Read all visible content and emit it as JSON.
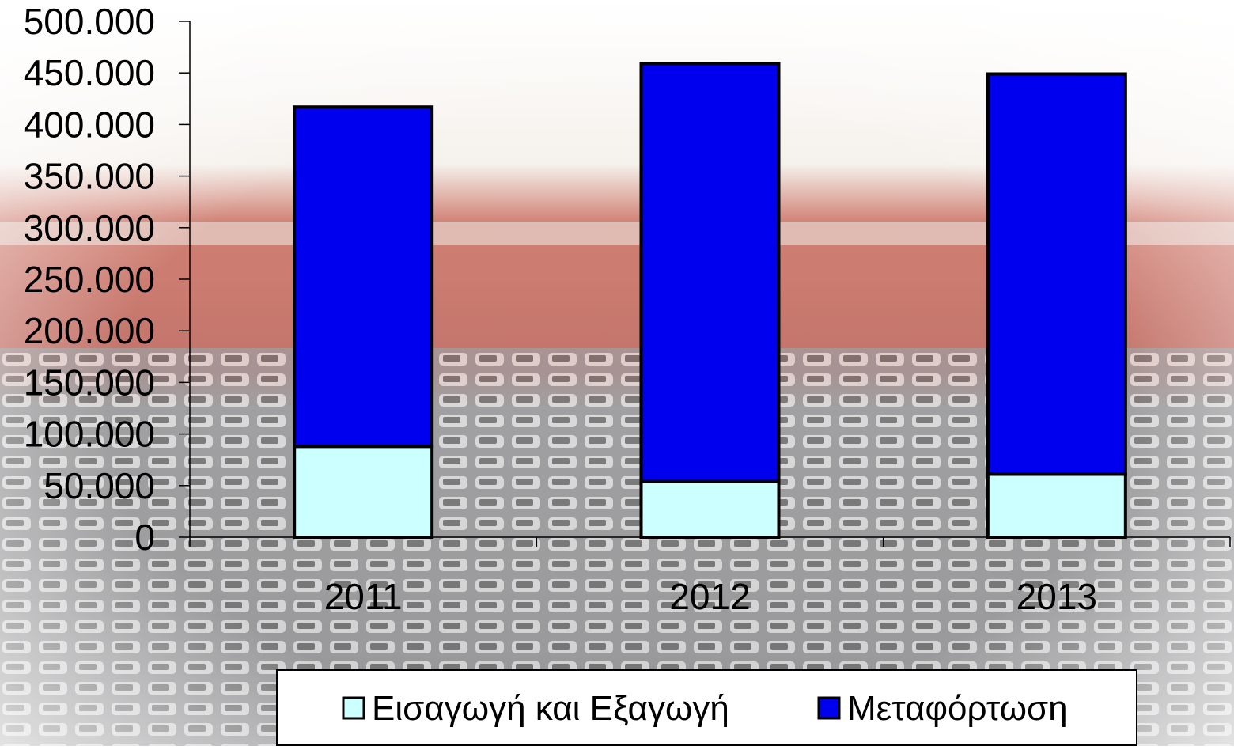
{
  "chart_data": {
    "type": "stacked_bar",
    "categories": [
      "2011",
      "2012",
      "2013"
    ],
    "series": [
      {
        "name": "Εισαγωγή και Εξαγωγή",
        "color": "#ccffff",
        "values": [
          88000,
          54000,
          61000
        ]
      },
      {
        "name": "Μεταφόρτωση",
        "color": "#0000ee",
        "values": [
          329000,
          405000,
          388000
        ]
      }
    ],
    "ylim": [
      0,
      500000
    ],
    "yticks": [
      0,
      {
        "value": 50000,
        "label": "50.000"
      },
      {
        "value": 100000,
        "label": "100.000"
      },
      {
        "value": 150000,
        "label": "150.000"
      },
      {
        "value": 200000,
        "label": "200.000"
      },
      {
        "value": 250000,
        "label": "250.000"
      },
      {
        "value": 300000,
        "label": "300.000"
      },
      {
        "value": 350000,
        "label": "350.000"
      },
      {
        "value": 400000,
        "label": "400.000"
      },
      {
        "value": 450000,
        "label": "450.000"
      },
      {
        "value": 500000,
        "label": "500.000"
      }
    ],
    "legend": "bottom"
  }
}
